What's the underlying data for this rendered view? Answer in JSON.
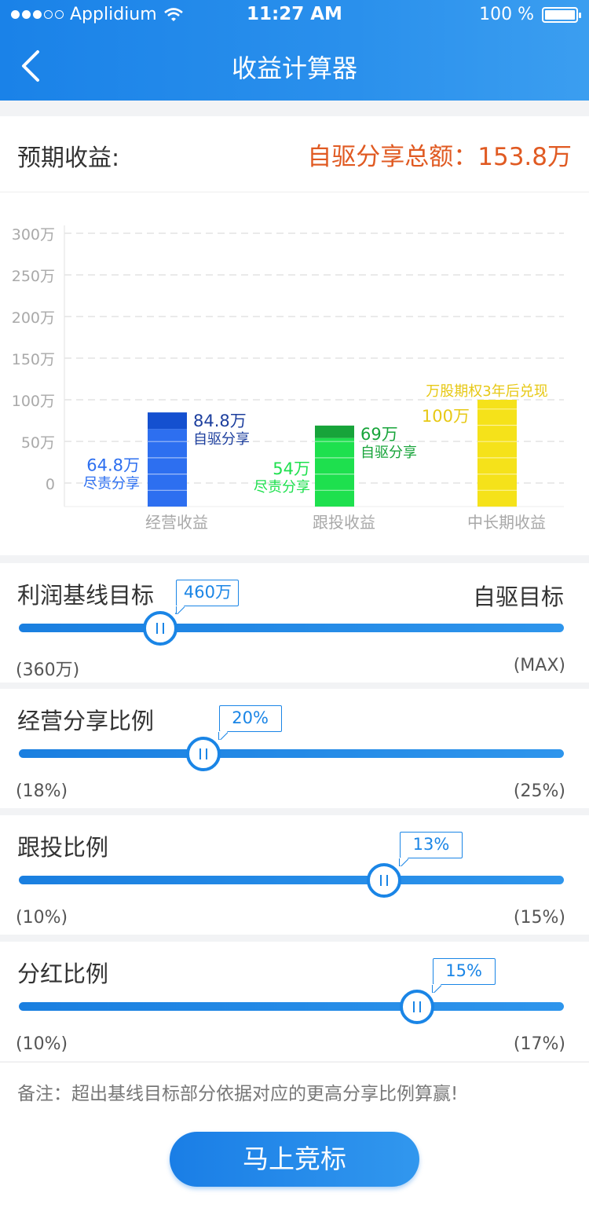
{
  "status_bar": {
    "carrier": "Applidium",
    "time": "11:27 AM",
    "battery": "100 %"
  },
  "nav": {
    "title": "收益计算器"
  },
  "summary": {
    "label": "预期收益:",
    "total": "自驱分享总额：153.8万"
  },
  "chart_data": {
    "type": "bar",
    "y_ticks": [
      "300万",
      "250万",
      "200万",
      "150万",
      "100万",
      "50万",
      "0"
    ],
    "ylim": [
      0,
      300
    ],
    "grid": true,
    "categories": [
      "经营收益",
      "跟投收益",
      "中长期收益"
    ],
    "bars": [
      {
        "category": "经营收益",
        "base_value": 64.8,
        "base_label": "64.8万",
        "base_tag": "尽责分享",
        "total_value": 84.8,
        "top_label": "84.8万",
        "top_tag": "自驱分享",
        "base_color": "#2d6ff0",
        "top_color": "#1450d0"
      },
      {
        "category": "跟投收益",
        "base_value": 54,
        "base_label": "54万",
        "base_tag": "尽责分享",
        "total_value": 69,
        "top_label": "69万",
        "top_tag": "自驱分享",
        "base_color": "#1ee04e",
        "top_color": "#17a43a"
      },
      {
        "category": "中长期收益",
        "total_value": 100,
        "top_label": "100万",
        "top_tag": "万股期权3年后兑现",
        "base_color": "#f5e21a",
        "top_color": "#f5e21a"
      }
    ]
  },
  "sliders": [
    {
      "title": "利润基线目标",
      "right_label": "自驱目标",
      "value": "460万",
      "min": "(360万)",
      "max": "(MAX)",
      "position": 0.26
    },
    {
      "title": "经营分享比例",
      "value": "20%",
      "min": "(18%)",
      "max": "(25%)",
      "position": 0.338
    },
    {
      "title": "跟投比例",
      "value": "13%",
      "min": "(10%)",
      "max": "(15%)",
      "position": 0.67
    },
    {
      "title": "分红比例",
      "value": "15%",
      "min": "(10%)",
      "max": "(17%)",
      "position": 0.73
    }
  ],
  "note": "备注：超出基线目标部分依据对应的更高分享比例算赢!",
  "cta": {
    "label": "马上竞标"
  },
  "colors": {
    "accent": "#1a85e6",
    "total_text": "#e05a22"
  }
}
